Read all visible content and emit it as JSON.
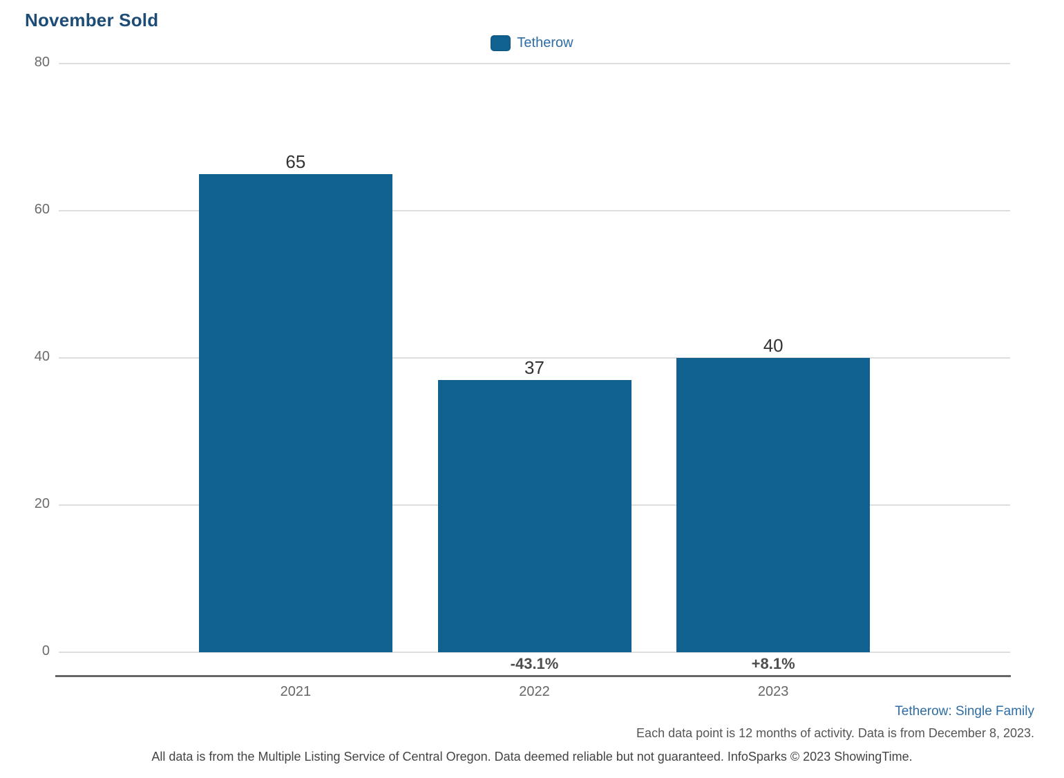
{
  "page": {
    "title": "November Sold"
  },
  "legend": {
    "label": "Tetherow",
    "swatch_color": "#10618f"
  },
  "chart_data": {
    "type": "bar",
    "title": "November Sold",
    "categories": [
      "2021",
      "2022",
      "2023"
    ],
    "series": [
      {
        "name": "Tetherow",
        "values": [
          65,
          37,
          40
        ]
      }
    ],
    "value_labels": [
      "65",
      "37",
      "40"
    ],
    "pct_change_labels": [
      null,
      "-43.1%",
      "+8.1%"
    ],
    "xlabel": "",
    "ylabel": "",
    "ylim": [
      0,
      80
    ],
    "yticks": [
      0,
      20,
      40,
      60,
      80
    ],
    "grid": true,
    "legend_position": "top-center",
    "bar_color": "#10618f"
  },
  "footer": {
    "series_note": "Tetherow: Single Family",
    "data_note": "Each data point is 12 months of activity. Data is from December 8, 2023.",
    "disclaimer": "All data is from the Multiple Listing Service of Central Oregon. Data deemed reliable but not guaranteed. InfoSparks © 2023 ShowingTime."
  },
  "colors": {
    "title": "#1d4d76",
    "legend_text": "#2e6da4",
    "bar": "#10618f",
    "grid_line": "#dedede",
    "axis_line": "#666666",
    "tick_label": "#6b6b6b",
    "value_label": "#333333",
    "pct_label": "#4d4d4d",
    "footer_blue": "#2e6da4",
    "footer_gray": "#555555"
  }
}
